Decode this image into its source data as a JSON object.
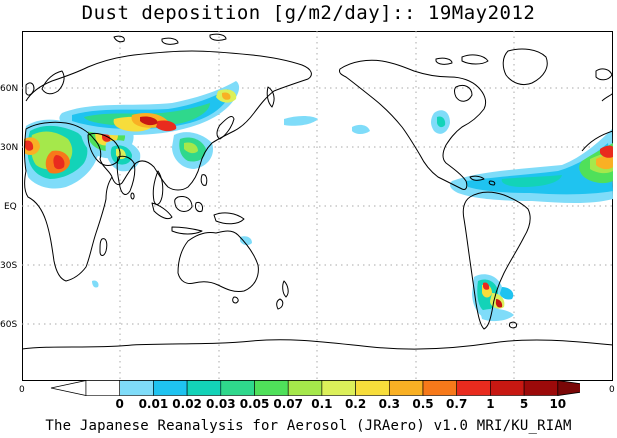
{
  "title": "Dust deposition [g/m2/day]:: 19May2012",
  "footer": "The Japanese Reanalysis for Aerosol (JRAero) v1.0 MRI/KU_RIAM",
  "map": {
    "lat_labels": [
      "60N",
      "30N",
      "EQ",
      "30S",
      "60S"
    ],
    "edge_labels": {
      "left": "0",
      "right": "0"
    }
  },
  "legend": {
    "labels": [
      "0",
      "0.01",
      "0.02",
      "0.03",
      "0.05",
      "0.07",
      "0.1",
      "0.2",
      "0.3",
      "0.5",
      "0.7",
      "1",
      "5",
      "10"
    ],
    "colors": [
      "#ffffff",
      "#7fdcf9",
      "#1fc3f0",
      "#13d3b8",
      "#2fd88c",
      "#4fe05a",
      "#a5e84b",
      "#dcf05a",
      "#f7dd3b",
      "#f9b024",
      "#f7791a",
      "#e92b1e",
      "#c81812",
      "#9c0a0a"
    ],
    "arrow_left": "#ffffff",
    "arrow_right": "#7a0707"
  }
}
